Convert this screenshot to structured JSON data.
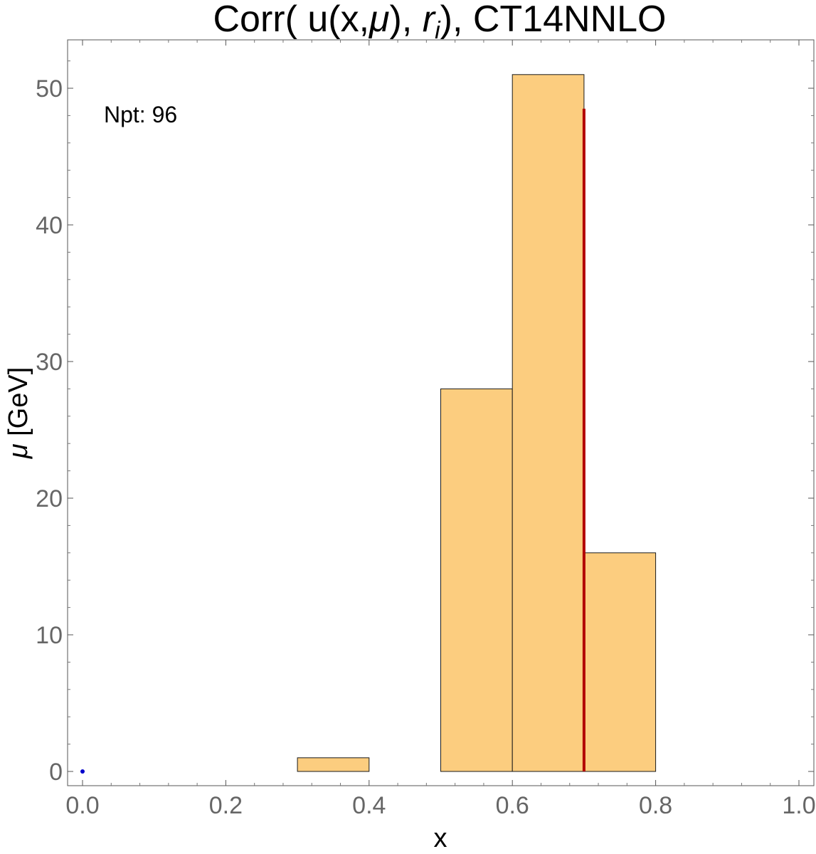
{
  "chart_data": {
    "type": "bar",
    "title_parts": {
      "pre": "Corr( u(x,",
      "mu": "μ",
      "mid": "), ",
      "r": "r",
      "sub": "i",
      "post": "), CT14NNLO"
    },
    "xlabel": "x",
    "ylabel": "μ [GeV]",
    "xlim": [
      0.0,
      1.0
    ],
    "ylim": [
      0,
      52
    ],
    "xticks": [
      "0.0",
      "0.2",
      "0.4",
      "0.6",
      "0.8",
      "1.0"
    ],
    "yticks": [
      "0",
      "10",
      "20",
      "30",
      "40",
      "50"
    ],
    "annotation": "Npt: 96",
    "bins": [
      {
        "x0": 0.3,
        "x1": 0.4,
        "value": 1
      },
      {
        "x0": 0.5,
        "x1": 0.6,
        "value": 28
      },
      {
        "x0": 0.6,
        "x1": 0.7,
        "value": 51
      },
      {
        "x0": 0.7,
        "x1": 0.8,
        "value": 16
      }
    ],
    "marker_line": {
      "x": 0.7,
      "y0": 0,
      "y1": 48.5
    },
    "points": [
      {
        "x": 0.0,
        "y": 0
      }
    ],
    "colors": {
      "bar_fill": "#fccd7f",
      "bar_stroke": "#1a1a1a",
      "marker_line": "#b30000",
      "point": "#0000cc"
    }
  }
}
